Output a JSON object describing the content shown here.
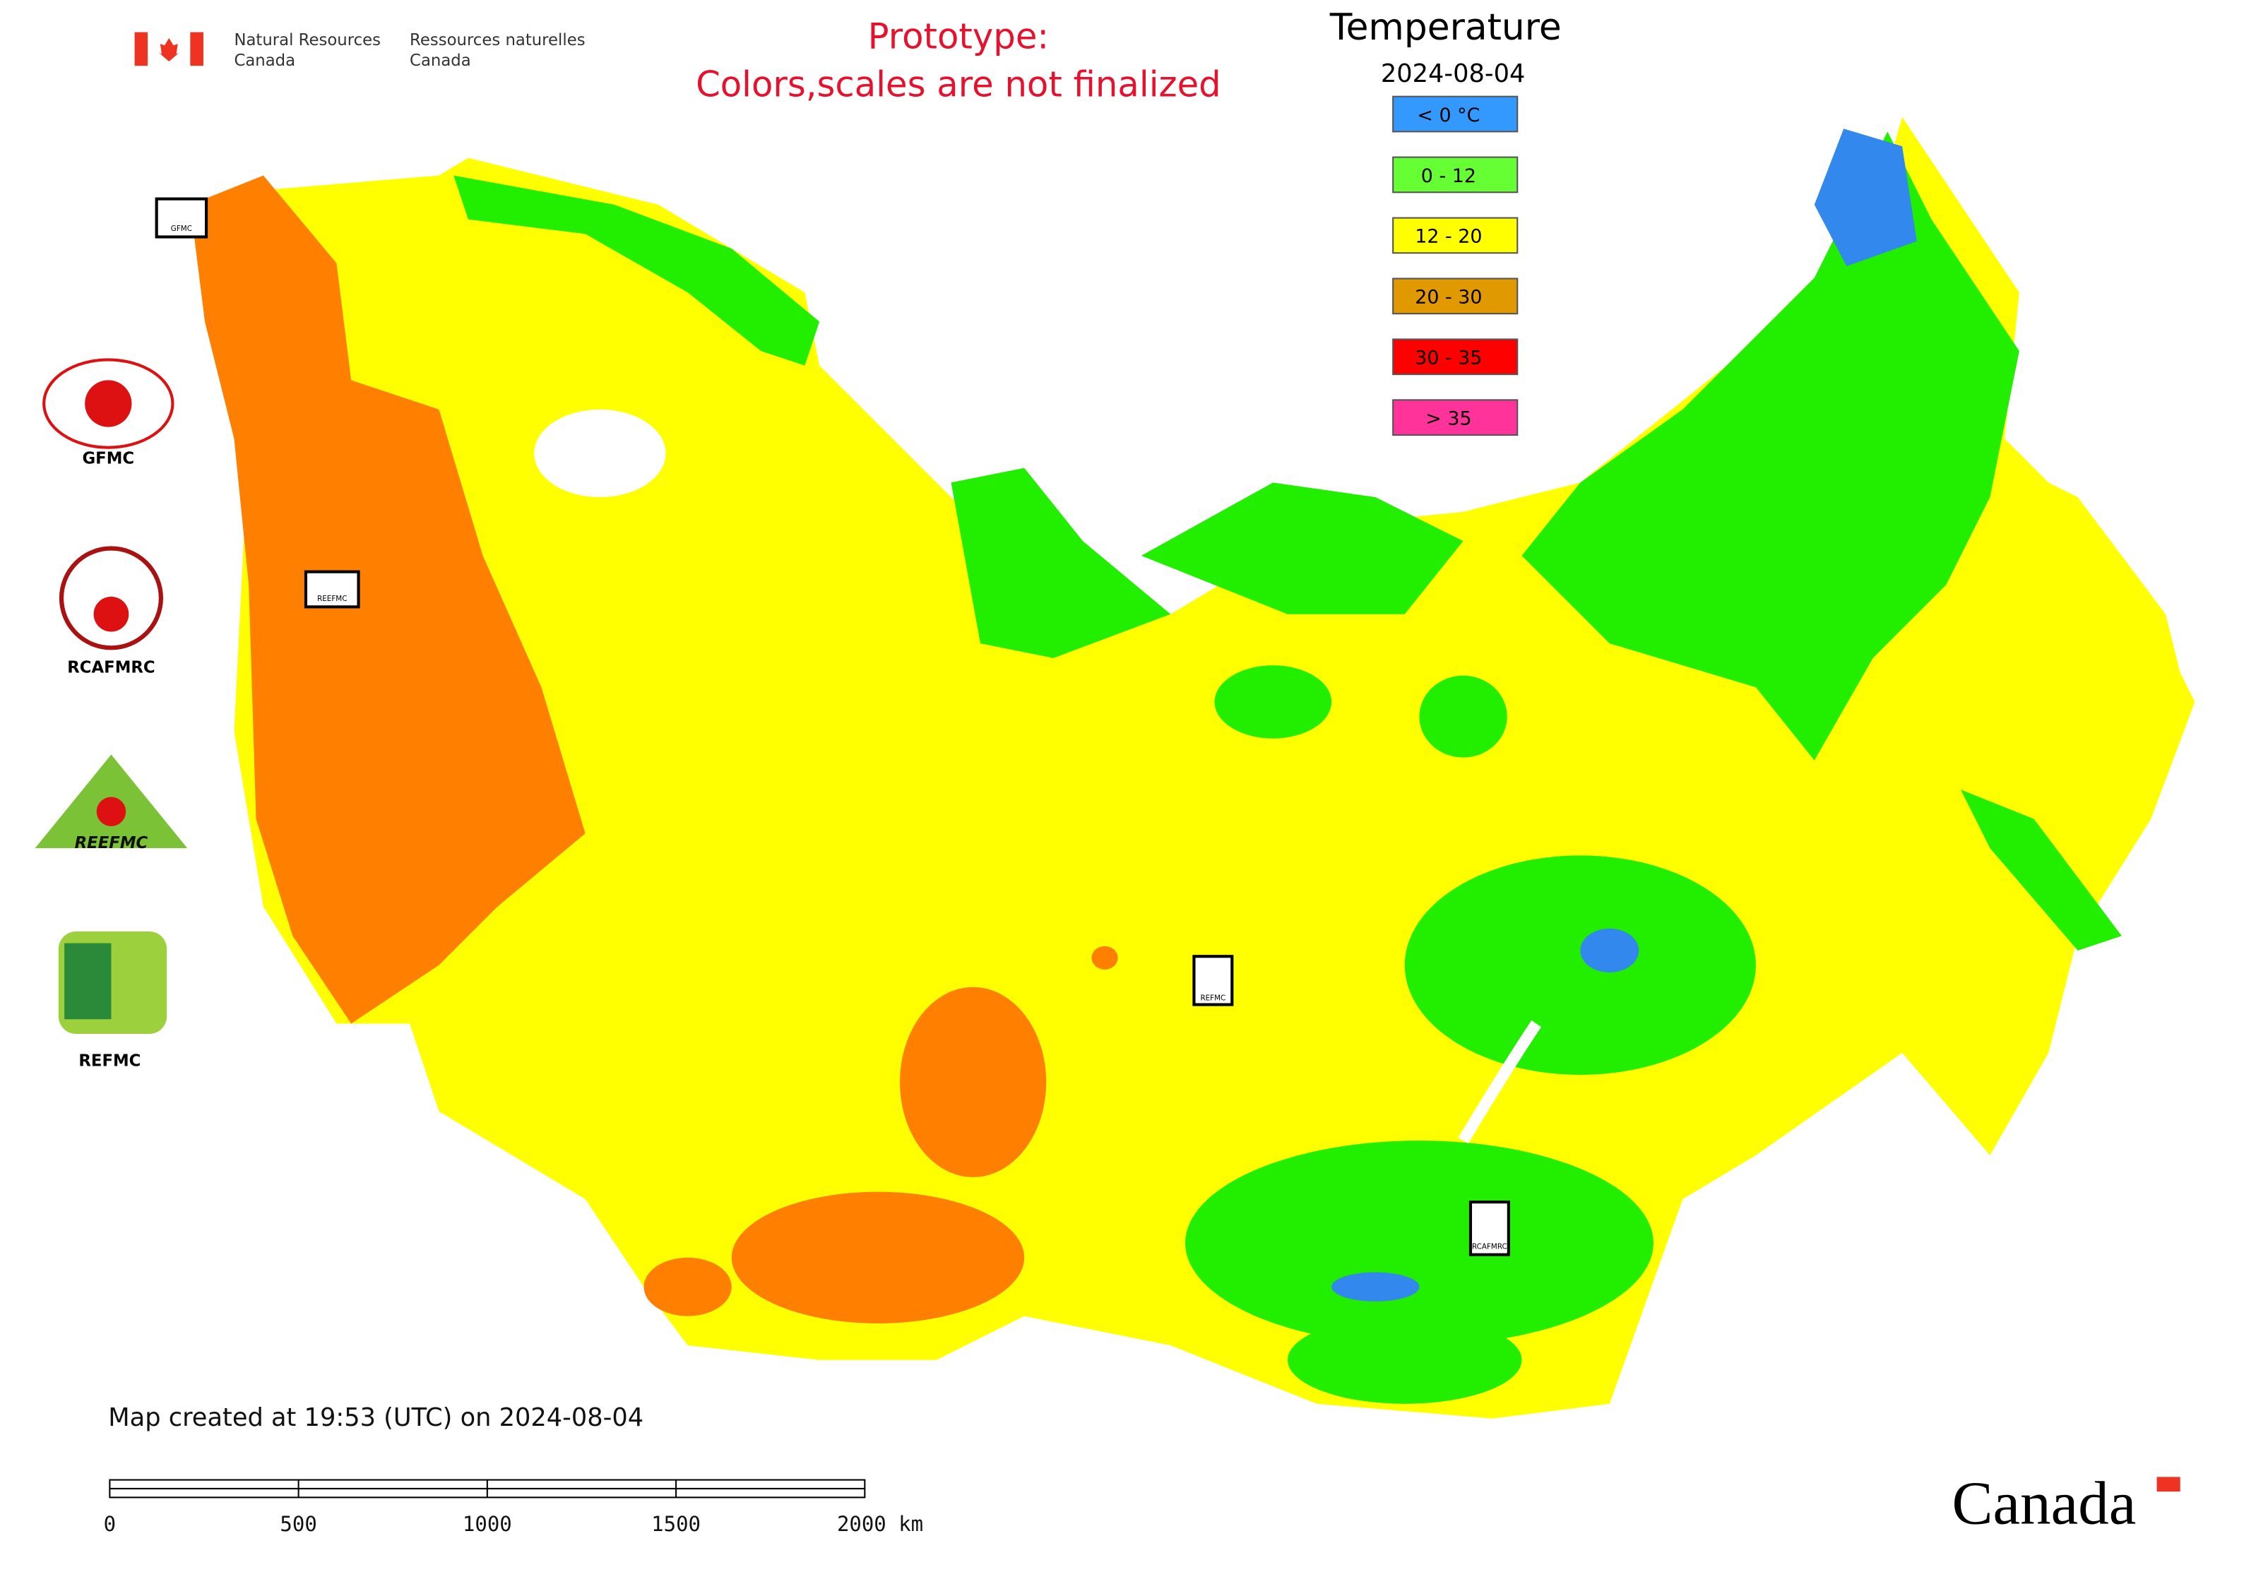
{
  "header": {
    "org_en_line1": "Natural Resources",
    "org_en_line2": "Canada",
    "org_fr_line1": "Ressources naturelles",
    "org_fr_line2": "Canada"
  },
  "notice": {
    "line1": "Prototype:",
    "line2": "Colors,scales are not finalized"
  },
  "legend": {
    "title": "Temperature",
    "date": "2024-08-04",
    "items": [
      {
        "label": "< 0 °C",
        "color": "#3399ff"
      },
      {
        "label": "0 - 12",
        "color": "#66ff33"
      },
      {
        "label": "12 - 20",
        "color": "#ffff00"
      },
      {
        "label": "20 - 30",
        "color": "#e09a00"
      },
      {
        "label": "30 - 35",
        "color": "#ff0000"
      },
      {
        "label": "> 35",
        "color": "#ff3399"
      }
    ]
  },
  "logos": [
    "GFMC",
    "RCAFMRC",
    "REEFMC",
    "REFMC"
  ],
  "footer": {
    "created": "Map created at 19:53 (UTC) on 2024-08-04",
    "wordmark": "Canada"
  },
  "scale_bar": {
    "labels": [
      "0",
      "500",
      "1000",
      "1500",
      "2000 km"
    ]
  }
}
